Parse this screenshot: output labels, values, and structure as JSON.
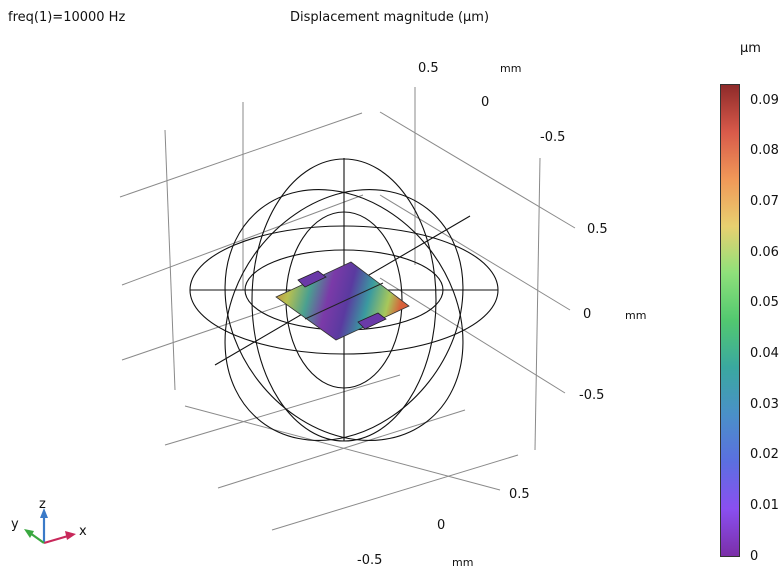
{
  "header": {
    "param_label": "freq(1)=10000 Hz",
    "plot_title": "Displacement magnitude (µm)"
  },
  "colorbar": {
    "unit": "µm",
    "ticks": [
      "0.09",
      "0.08",
      "0.07",
      "0.06",
      "0.05",
      "0.04",
      "0.03",
      "0.02",
      "0.01",
      "0"
    ],
    "colormap": [
      "#7b2fa8",
      "#8a4ff0",
      "#4a90c8",
      "#52c870",
      "#e8d070",
      "#f09858",
      "#8e2a2a"
    ]
  },
  "axes": {
    "x_ticks": [
      "-0.5",
      "0",
      "0.5"
    ],
    "x_unit": "mm",
    "y_ticks": [
      "0.5",
      "0",
      "-0.5"
    ],
    "y_unit": "mm",
    "z_ticks": [
      "0.5",
      "0",
      "-0.5"
    ],
    "z_unit": "mm"
  },
  "triad": {
    "x": "x",
    "y": "y",
    "z": "z"
  }
}
